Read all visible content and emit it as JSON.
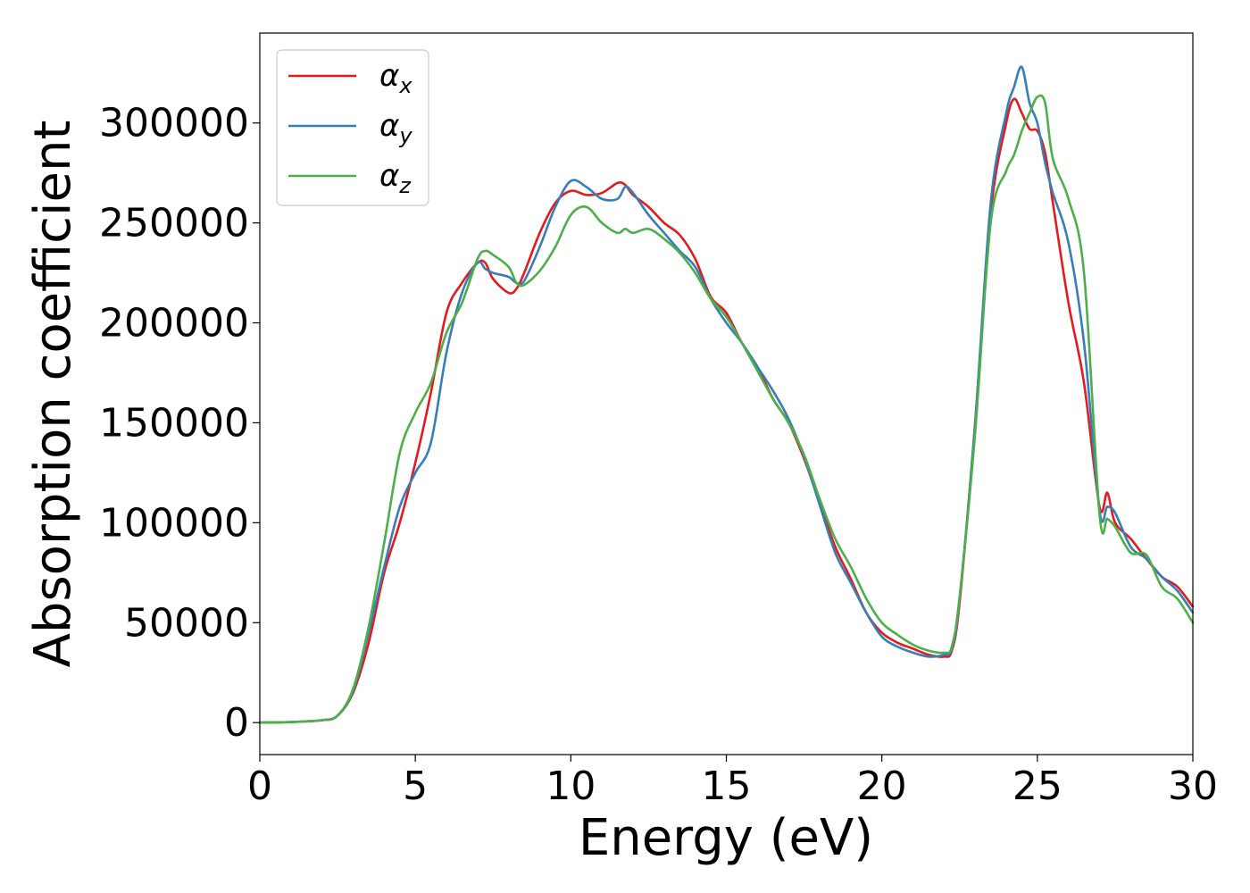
{
  "chart_data": {
    "type": "line",
    "title": "",
    "xlabel": "Energy (eV)",
    "ylabel": "Absorption coefficient",
    "xlim": [
      0,
      30
    ],
    "ylim": [
      -16000,
      345000
    ],
    "xticks": [
      0,
      5,
      10,
      15,
      20,
      25,
      30
    ],
    "xtick_labels": [
      "0",
      "5",
      "10",
      "15",
      "20",
      "25",
      "30"
    ],
    "yticks": [
      0,
      50000,
      100000,
      150000,
      200000,
      250000,
      300000
    ],
    "ytick_labels": [
      "0",
      "50000",
      "100000",
      "150000",
      "200000",
      "250000",
      "300000"
    ],
    "grid": false,
    "legend_position": "top-left",
    "x": [
      0,
      1,
      2,
      2.5,
      3,
      3.5,
      4,
      4.5,
      5,
      5.5,
      6,
      6.5,
      7,
      7.25,
      7.5,
      8,
      8.25,
      8.5,
      9,
      9.5,
      10,
      10.5,
      11,
      11.5,
      11.75,
      12,
      12.5,
      13,
      13.5,
      14,
      14.5,
      15,
      15.5,
      16,
      16.5,
      17,
      17.5,
      18,
      18.5,
      19,
      19.5,
      20,
      20.5,
      21,
      21.5,
      22,
      22.25,
      22.5,
      23,
      23.5,
      24,
      24.25,
      24.5,
      24.75,
      25,
      25.25,
      25.5,
      26,
      26.5,
      27,
      27.25,
      27.5,
      28,
      28.5,
      29,
      29.5,
      30
    ],
    "series": [
      {
        "name": "α",
        "subscript": "x",
        "color": "#e41a1c",
        "values": [
          0,
          300,
          1200,
          3500,
          15000,
          40000,
          75000,
          100000,
          130000,
          165000,
          205000,
          220000,
          230000,
          230000,
          222000,
          215000,
          217000,
          225000,
          245000,
          260000,
          266000,
          264000,
          265000,
          270000,
          269000,
          264000,
          258000,
          250000,
          244000,
          232000,
          213000,
          205000,
          190000,
          178000,
          162000,
          150000,
          132000,
          110000,
          88000,
          72000,
          55000,
          45000,
          40000,
          37000,
          34000,
          33000,
          36000,
          60000,
          150000,
          255000,
          300000,
          312000,
          305000,
          297000,
          296000,
          285000,
          260000,
          210000,
          170000,
          108000,
          115000,
          100000,
          92000,
          82000,
          73000,
          68000,
          58000
        ]
      },
      {
        "name": "α",
        "subscript": "y",
        "color": "#377eb8",
        "values": [
          0,
          300,
          1200,
          3500,
          16000,
          45000,
          78000,
          108000,
          125000,
          140000,
          185000,
          215000,
          230000,
          227000,
          225000,
          223000,
          220000,
          221000,
          238000,
          258000,
          271000,
          268000,
          262000,
          262000,
          268000,
          265000,
          254000,
          245000,
          236000,
          228000,
          212000,
          200000,
          190000,
          178000,
          166000,
          152000,
          133000,
          109000,
          85000,
          70000,
          55000,
          43000,
          38000,
          35000,
          33000,
          34000,
          37000,
          62000,
          150000,
          260000,
          305000,
          318000,
          328000,
          310000,
          300000,
          280000,
          265000,
          240000,
          190000,
          106000,
          108000,
          105000,
          88000,
          82000,
          73000,
          66000,
          55000
        ]
      },
      {
        "name": "α",
        "subscript": "z",
        "color": "#4daf4a",
        "values": [
          0,
          300,
          1200,
          3500,
          17000,
          48000,
          90000,
          135000,
          155000,
          170000,
          195000,
          210000,
          232000,
          236000,
          234000,
          228000,
          220000,
          219000,
          226000,
          238000,
          254000,
          258000,
          250000,
          245000,
          247000,
          245000,
          247000,
          242000,
          235000,
          225000,
          212000,
          203000,
          190000,
          176000,
          162000,
          150000,
          134000,
          112000,
          92000,
          78000,
          62000,
          50000,
          44000,
          39000,
          36000,
          35000,
          38000,
          63000,
          145000,
          250000,
          276000,
          284000,
          296000,
          305000,
          313000,
          310000,
          282000,
          262000,
          225000,
          104000,
          102000,
          98000,
          85000,
          84000,
          68000,
          62000,
          50000
        ]
      }
    ]
  }
}
